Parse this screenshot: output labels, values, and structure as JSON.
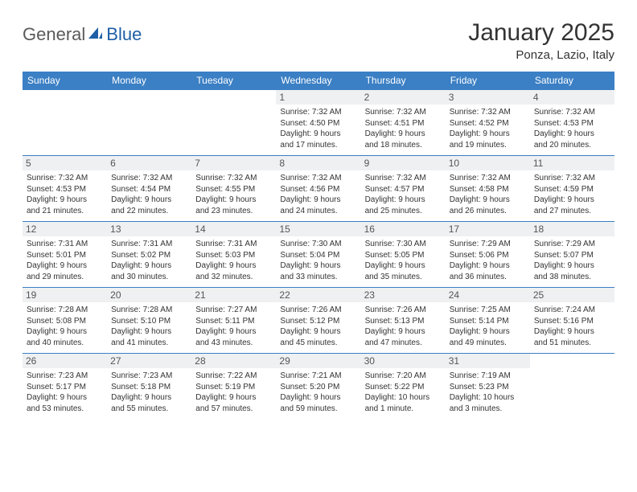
{
  "brand": {
    "part1": "General",
    "part2": "Blue"
  },
  "colors": {
    "header_bg": "#3b7fc4",
    "header_text": "#ffffff",
    "daynum_bg": "#eef0f2",
    "border": "#3b7fc4",
    "text": "#333333",
    "logo_gray": "#5a5a5a",
    "logo_blue": "#1e5fa6"
  },
  "title": "January 2025",
  "location": "Ponza, Lazio, Italy",
  "weekdays": [
    "Sunday",
    "Monday",
    "Tuesday",
    "Wednesday",
    "Thursday",
    "Friday",
    "Saturday"
  ],
  "weeks": [
    [
      null,
      null,
      null,
      {
        "n": "1",
        "sr": "Sunrise: 7:32 AM",
        "ss": "Sunset: 4:50 PM",
        "d1": "Daylight: 9 hours",
        "d2": "and 17 minutes."
      },
      {
        "n": "2",
        "sr": "Sunrise: 7:32 AM",
        "ss": "Sunset: 4:51 PM",
        "d1": "Daylight: 9 hours",
        "d2": "and 18 minutes."
      },
      {
        "n": "3",
        "sr": "Sunrise: 7:32 AM",
        "ss": "Sunset: 4:52 PM",
        "d1": "Daylight: 9 hours",
        "d2": "and 19 minutes."
      },
      {
        "n": "4",
        "sr": "Sunrise: 7:32 AM",
        "ss": "Sunset: 4:53 PM",
        "d1": "Daylight: 9 hours",
        "d2": "and 20 minutes."
      }
    ],
    [
      {
        "n": "5",
        "sr": "Sunrise: 7:32 AM",
        "ss": "Sunset: 4:53 PM",
        "d1": "Daylight: 9 hours",
        "d2": "and 21 minutes."
      },
      {
        "n": "6",
        "sr": "Sunrise: 7:32 AM",
        "ss": "Sunset: 4:54 PM",
        "d1": "Daylight: 9 hours",
        "d2": "and 22 minutes."
      },
      {
        "n": "7",
        "sr": "Sunrise: 7:32 AM",
        "ss": "Sunset: 4:55 PM",
        "d1": "Daylight: 9 hours",
        "d2": "and 23 minutes."
      },
      {
        "n": "8",
        "sr": "Sunrise: 7:32 AM",
        "ss": "Sunset: 4:56 PM",
        "d1": "Daylight: 9 hours",
        "d2": "and 24 minutes."
      },
      {
        "n": "9",
        "sr": "Sunrise: 7:32 AM",
        "ss": "Sunset: 4:57 PM",
        "d1": "Daylight: 9 hours",
        "d2": "and 25 minutes."
      },
      {
        "n": "10",
        "sr": "Sunrise: 7:32 AM",
        "ss": "Sunset: 4:58 PM",
        "d1": "Daylight: 9 hours",
        "d2": "and 26 minutes."
      },
      {
        "n": "11",
        "sr": "Sunrise: 7:32 AM",
        "ss": "Sunset: 4:59 PM",
        "d1": "Daylight: 9 hours",
        "d2": "and 27 minutes."
      }
    ],
    [
      {
        "n": "12",
        "sr": "Sunrise: 7:31 AM",
        "ss": "Sunset: 5:01 PM",
        "d1": "Daylight: 9 hours",
        "d2": "and 29 minutes."
      },
      {
        "n": "13",
        "sr": "Sunrise: 7:31 AM",
        "ss": "Sunset: 5:02 PM",
        "d1": "Daylight: 9 hours",
        "d2": "and 30 minutes."
      },
      {
        "n": "14",
        "sr": "Sunrise: 7:31 AM",
        "ss": "Sunset: 5:03 PM",
        "d1": "Daylight: 9 hours",
        "d2": "and 32 minutes."
      },
      {
        "n": "15",
        "sr": "Sunrise: 7:30 AM",
        "ss": "Sunset: 5:04 PM",
        "d1": "Daylight: 9 hours",
        "d2": "and 33 minutes."
      },
      {
        "n": "16",
        "sr": "Sunrise: 7:30 AM",
        "ss": "Sunset: 5:05 PM",
        "d1": "Daylight: 9 hours",
        "d2": "and 35 minutes."
      },
      {
        "n": "17",
        "sr": "Sunrise: 7:29 AM",
        "ss": "Sunset: 5:06 PM",
        "d1": "Daylight: 9 hours",
        "d2": "and 36 minutes."
      },
      {
        "n": "18",
        "sr": "Sunrise: 7:29 AM",
        "ss": "Sunset: 5:07 PM",
        "d1": "Daylight: 9 hours",
        "d2": "and 38 minutes."
      }
    ],
    [
      {
        "n": "19",
        "sr": "Sunrise: 7:28 AM",
        "ss": "Sunset: 5:08 PM",
        "d1": "Daylight: 9 hours",
        "d2": "and 40 minutes."
      },
      {
        "n": "20",
        "sr": "Sunrise: 7:28 AM",
        "ss": "Sunset: 5:10 PM",
        "d1": "Daylight: 9 hours",
        "d2": "and 41 minutes."
      },
      {
        "n": "21",
        "sr": "Sunrise: 7:27 AM",
        "ss": "Sunset: 5:11 PM",
        "d1": "Daylight: 9 hours",
        "d2": "and 43 minutes."
      },
      {
        "n": "22",
        "sr": "Sunrise: 7:26 AM",
        "ss": "Sunset: 5:12 PM",
        "d1": "Daylight: 9 hours",
        "d2": "and 45 minutes."
      },
      {
        "n": "23",
        "sr": "Sunrise: 7:26 AM",
        "ss": "Sunset: 5:13 PM",
        "d1": "Daylight: 9 hours",
        "d2": "and 47 minutes."
      },
      {
        "n": "24",
        "sr": "Sunrise: 7:25 AM",
        "ss": "Sunset: 5:14 PM",
        "d1": "Daylight: 9 hours",
        "d2": "and 49 minutes."
      },
      {
        "n": "25",
        "sr": "Sunrise: 7:24 AM",
        "ss": "Sunset: 5:16 PM",
        "d1": "Daylight: 9 hours",
        "d2": "and 51 minutes."
      }
    ],
    [
      {
        "n": "26",
        "sr": "Sunrise: 7:23 AM",
        "ss": "Sunset: 5:17 PM",
        "d1": "Daylight: 9 hours",
        "d2": "and 53 minutes."
      },
      {
        "n": "27",
        "sr": "Sunrise: 7:23 AM",
        "ss": "Sunset: 5:18 PM",
        "d1": "Daylight: 9 hours",
        "d2": "and 55 minutes."
      },
      {
        "n": "28",
        "sr": "Sunrise: 7:22 AM",
        "ss": "Sunset: 5:19 PM",
        "d1": "Daylight: 9 hours",
        "d2": "and 57 minutes."
      },
      {
        "n": "29",
        "sr": "Sunrise: 7:21 AM",
        "ss": "Sunset: 5:20 PM",
        "d1": "Daylight: 9 hours",
        "d2": "and 59 minutes."
      },
      {
        "n": "30",
        "sr": "Sunrise: 7:20 AM",
        "ss": "Sunset: 5:22 PM",
        "d1": "Daylight: 10 hours",
        "d2": "and 1 minute."
      },
      {
        "n": "31",
        "sr": "Sunrise: 7:19 AM",
        "ss": "Sunset: 5:23 PM",
        "d1": "Daylight: 10 hours",
        "d2": "and 3 minutes."
      },
      null
    ]
  ]
}
